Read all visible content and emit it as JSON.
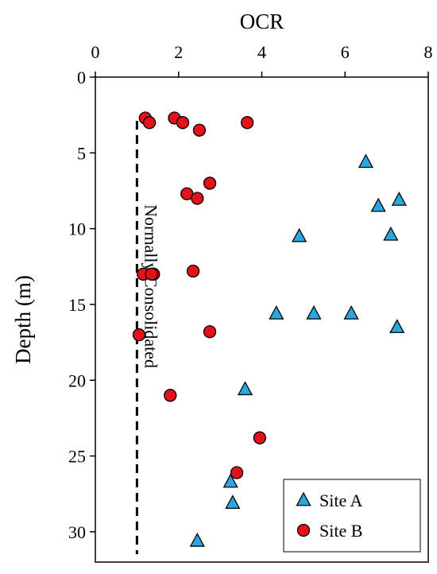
{
  "chart_data": {
    "type": "scatter",
    "title": "",
    "xlabel": "OCR",
    "ylabel": "Depth (m)",
    "x_axis_position": "top",
    "y_axis_inverted": true,
    "xlim": [
      0,
      8
    ],
    "ylim": [
      0,
      32
    ],
    "xticks": [
      0,
      2,
      4,
      6,
      8
    ],
    "yticks": [
      0,
      5,
      10,
      15,
      20,
      25,
      30
    ],
    "grid": false,
    "legend_position": "bottom-right",
    "reference_line": {
      "x": 1,
      "style": "dashed",
      "label": "Normally Consolidated"
    },
    "series": [
      {
        "name": "Site A",
        "marker": "triangle",
        "color": "#29a8e0",
        "points": [
          {
            "x": 6.5,
            "y": 5.6
          },
          {
            "x": 7.3,
            "y": 8.1
          },
          {
            "x": 6.8,
            "y": 8.5
          },
          {
            "x": 7.1,
            "y": 10.4
          },
          {
            "x": 4.9,
            "y": 10.5
          },
          {
            "x": 4.35,
            "y": 15.6
          },
          {
            "x": 5.25,
            "y": 15.6
          },
          {
            "x": 6.15,
            "y": 15.6
          },
          {
            "x": 7.25,
            "y": 16.5
          },
          {
            "x": 3.6,
            "y": 20.6
          },
          {
            "x": 3.25,
            "y": 26.7
          },
          {
            "x": 3.3,
            "y": 28.1
          },
          {
            "x": 2.45,
            "y": 30.6
          }
        ]
      },
      {
        "name": "Site B",
        "marker": "circle",
        "color": "#e2111a",
        "points": [
          {
            "x": 1.2,
            "y": 2.7
          },
          {
            "x": 1.3,
            "y": 3.0
          },
          {
            "x": 1.9,
            "y": 2.7
          },
          {
            "x": 2.1,
            "y": 3.0
          },
          {
            "x": 2.5,
            "y": 3.5
          },
          {
            "x": 3.65,
            "y": 3.0
          },
          {
            "x": 2.75,
            "y": 7.0
          },
          {
            "x": 2.2,
            "y": 7.7
          },
          {
            "x": 2.45,
            "y": 8.0
          },
          {
            "x": 2.35,
            "y": 12.8
          },
          {
            "x": 1.15,
            "y": 13.0
          },
          {
            "x": 1.4,
            "y": 13.0
          },
          {
            "x": 1.35,
            "y": 13.0
          },
          {
            "x": 2.75,
            "y": 16.8
          },
          {
            "x": 1.05,
            "y": 17.0
          },
          {
            "x": 1.8,
            "y": 21.0
          },
          {
            "x": 3.95,
            "y": 23.8
          },
          {
            "x": 3.4,
            "y": 26.1
          }
        ]
      }
    ]
  }
}
